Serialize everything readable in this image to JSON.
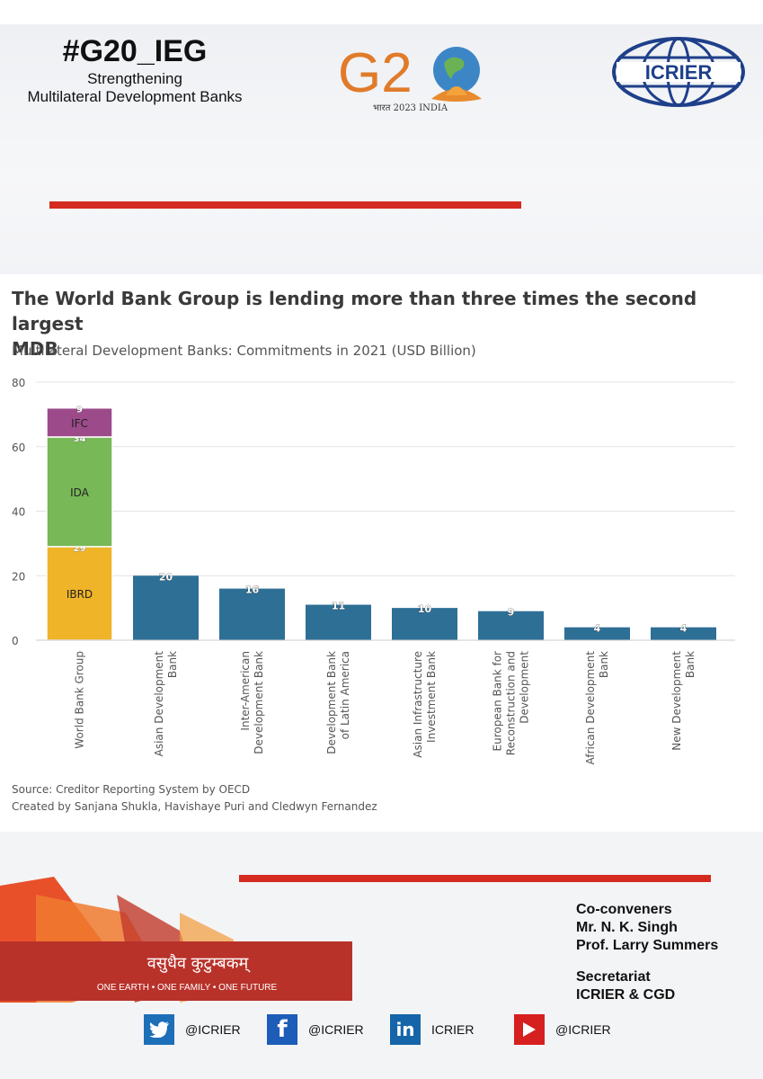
{
  "header": {
    "hashtag": "#G20_IEG",
    "subtitle_line1": "Strengthening",
    "subtitle_line2": "Multilateral Development Banks",
    "g20_caption": "भारत 2023 INDIA",
    "icrier_logo": "ICRIER"
  },
  "chart": {
    "title_line1": "The World Bank Group is lending more than three times the second largest",
    "title_line2": "MDB",
    "subtitle": "Multilateral Development Banks: Commitments in 2021 (USD Billion)"
  },
  "chart_data": {
    "type": "bar",
    "stacked_first": true,
    "categories": [
      [
        "World Bank Group"
      ],
      [
        "Asian Development",
        "Bank"
      ],
      [
        "Inter-American",
        "Development Bank"
      ],
      [
        "Development Bank",
        "of Latin America"
      ],
      [
        "Asian Infrastructure",
        "Investment Bank"
      ],
      [
        "European Bank for",
        "Reconstruction and",
        "Development"
      ],
      [
        "African Development",
        "Bank"
      ],
      [
        "New Development",
        "Bank"
      ]
    ],
    "values": [
      null,
      20,
      16,
      11,
      10,
      9,
      4,
      4
    ],
    "world_bank_stack": [
      {
        "name": "IBRD",
        "value": 29,
        "label": "29",
        "color": "#f0b429"
      },
      {
        "name": "IDA",
        "value": 34,
        "label": "34",
        "color": "#78b857"
      },
      {
        "name": "IFC",
        "value": 9,
        "label": "9",
        "color": "#9c4a8a"
      }
    ],
    "bar_color": "#2e6f96",
    "ylim": [
      0,
      80
    ],
    "yticks": [
      0,
      20,
      40,
      60,
      80
    ],
    "grid": true
  },
  "source": {
    "line1": "Source: Creditor Reporting System by OECD",
    "line2": "Created by Sanjana Shukla, Havishaye Puri and Cledwyn Fernandez"
  },
  "footer": {
    "vk_text": "वसुधैव कुटुम्बकम्",
    "vk_motto": "ONE EARTH • ONE FAMILY • ONE FUTURE",
    "coconveners_label": "Co-conveners",
    "person1": "Mr. N. K. Singh",
    "person2": "Prof. Larry Summers",
    "secretariat_label": "Secretariat",
    "secretariat": "ICRIER & CGD",
    "social": [
      {
        "icon": "twitter-icon",
        "handle": "@ICRIER",
        "color": "#1d6fb8"
      },
      {
        "icon": "facebook-icon",
        "handle": "@ICRIER",
        "color": "#1d5cb8"
      },
      {
        "icon": "linkedin-icon",
        "handle": "ICRIER",
        "color": "#1565a8"
      },
      {
        "icon": "youtube-icon",
        "handle": "@ICRIER",
        "color": "#d61f1f"
      }
    ]
  }
}
